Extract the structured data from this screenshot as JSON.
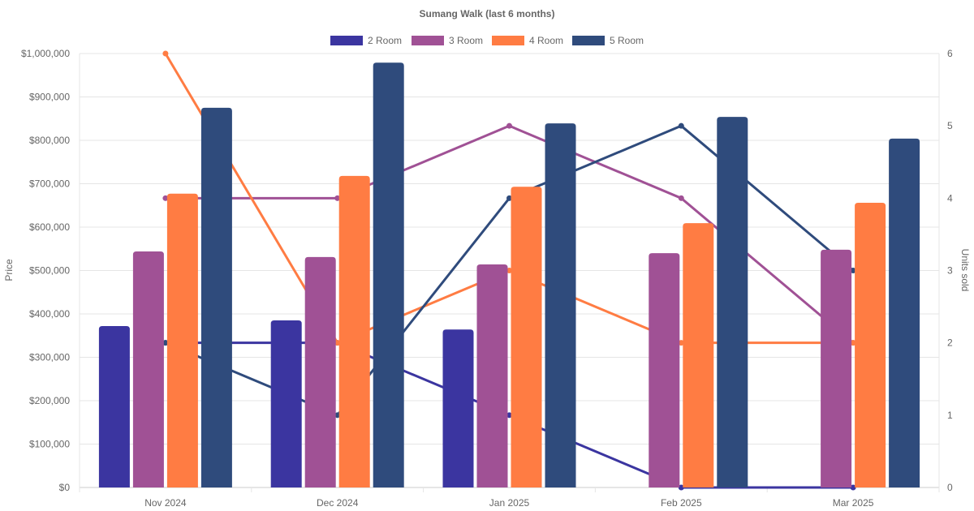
{
  "chart_data": {
    "type": "bar",
    "title": "Sumang Walk (last 6 months)",
    "categories": [
      "Nov 2024",
      "Dec 2024",
      "Jan 2025",
      "Feb 2025",
      "Mar 2025"
    ],
    "ylabel": "Price",
    "y2label": "Units sold",
    "ylim": [
      0,
      1000000
    ],
    "y2lim": [
      0,
      6
    ],
    "yticks": [
      "$0",
      "$100,000",
      "$200,000",
      "$300,000",
      "$400,000",
      "$500,000",
      "$600,000",
      "$700,000",
      "$800,000",
      "$900,000",
      "$1,000,000"
    ],
    "y2ticks": [
      "0",
      "1",
      "2",
      "3",
      "4",
      "5",
      "6"
    ],
    "legend_position": "top",
    "grid": true,
    "series": [
      {
        "name": "2 Room",
        "color": "#3b35a0",
        "price": [
          372000,
          385000,
          364000,
          null,
          null
        ],
        "units": [
          2,
          2,
          1,
          0,
          0
        ]
      },
      {
        "name": "3 Room",
        "color": "#a05195",
        "price": [
          544000,
          531000,
          514000,
          540000,
          548000
        ],
        "units": [
          4,
          4,
          5,
          4,
          2
        ]
      },
      {
        "name": "4 Room",
        "color": "#ff7c43",
        "price": [
          677000,
          718000,
          693000,
          609000,
          656000
        ],
        "units": [
          6,
          2,
          3,
          2,
          2
        ]
      },
      {
        "name": "5 Room",
        "color": "#2f4b7c",
        "price": [
          875000,
          979000,
          839000,
          854000,
          804000
        ],
        "units": [
          2,
          1,
          4,
          5,
          3
        ]
      }
    ]
  }
}
